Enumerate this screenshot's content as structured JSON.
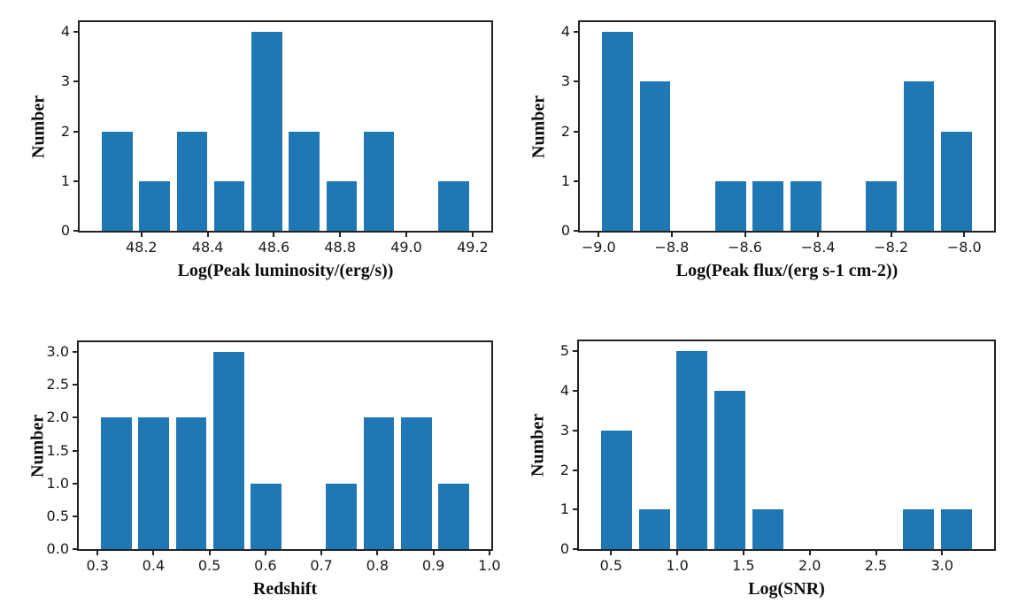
{
  "figure": {
    "background": "#ffffff",
    "bar_color": "#1f77b4",
    "spine_color": "#222222",
    "tick_label_color": "#1a1a1a",
    "grid": false,
    "legend": null
  },
  "chart_data": [
    {
      "id": "peak-luminosity-histogram",
      "type": "bar",
      "title": "",
      "xlabel": "Log(Peak luminosity/(erg/s))",
      "ylabel": "Number",
      "bin_start": 48.07,
      "bin_width": 0.113,
      "counts": [
        2,
        1,
        2,
        1,
        4,
        2,
        1,
        2,
        0,
        1
      ],
      "rwidth": 0.82,
      "xlim": [
        48.0135,
        49.2565
      ],
      "ylim": [
        0,
        4.2
      ],
      "xticks": {
        "values": [
          48.2,
          48.4,
          48.6,
          48.8,
          49.0,
          49.2
        ],
        "labels": [
          "48.2",
          "48.4",
          "48.6",
          "48.8",
          "49.0",
          "49.2"
        ]
      },
      "yticks": {
        "values": [
          0,
          1,
          2,
          3,
          4
        ],
        "labels": [
          "0",
          "1",
          "2",
          "3",
          "4"
        ]
      }
    },
    {
      "id": "peak-flux-histogram",
      "type": "bar",
      "title": "",
      "xlabel": "Log(Peak flux/(erg s-1 cm-2))",
      "ylabel": "Number",
      "bin_start": -9.0,
      "bin_width": 0.103,
      "counts": [
        4,
        3,
        0,
        1,
        1,
        1,
        0,
        1,
        3,
        2
      ],
      "rwidth": 0.82,
      "xlim": [
        -9.0515,
        -7.9185
      ],
      "ylim": [
        0,
        4.2
      ],
      "xticks": {
        "values": [
          -9.0,
          -8.8,
          -8.6,
          -8.4,
          -8.2,
          -8.0
        ],
        "labels": [
          "−9.0",
          "−8.8",
          "−8.6",
          "−8.4",
          "−8.2",
          "−8.0"
        ]
      },
      "yticks": {
        "values": [
          0,
          1,
          2,
          3,
          4
        ],
        "labels": [
          "0",
          "1",
          "2",
          "3",
          "4"
        ]
      }
    },
    {
      "id": "redshift-histogram",
      "type": "bar",
      "title": "",
      "xlabel": "Redshift",
      "ylabel": "Number",
      "bin_start": 0.3,
      "bin_width": 0.067,
      "counts": [
        2,
        2,
        2,
        3,
        1,
        0,
        1,
        2,
        2,
        1
      ],
      "rwidth": 0.82,
      "xlim": [
        0.2665,
        1.0035
      ],
      "ylim": [
        0,
        3.15
      ],
      "xticks": {
        "values": [
          0.3,
          0.4,
          0.5,
          0.6,
          0.7,
          0.8,
          0.9,
          1.0
        ],
        "labels": [
          "0.3",
          "0.4",
          "0.5",
          "0.6",
          "0.7",
          "0.8",
          "0.9",
          "1.0"
        ]
      },
      "yticks": {
        "values": [
          0,
          0.5,
          1.0,
          1.5,
          2.0,
          2.5,
          3.0
        ],
        "labels": [
          "0.0",
          "0.5",
          "1.0",
          "1.5",
          "2.0",
          "2.5",
          "3.0"
        ]
      }
    },
    {
      "id": "snr-histogram",
      "type": "bar",
      "title": "",
      "xlabel": "Log(SNR)",
      "ylabel": "Number",
      "bin_start": 0.4,
      "bin_width": 0.285,
      "counts": [
        3,
        1,
        5,
        4,
        1,
        0,
        0,
        0,
        1,
        1
      ],
      "rwidth": 0.82,
      "xlim": [
        0.2575,
        3.3925
      ],
      "ylim": [
        0,
        5.25
      ],
      "xticks": {
        "values": [
          0.5,
          1.0,
          1.5,
          2.0,
          2.5,
          3.0
        ],
        "labels": [
          "0.5",
          "1.0",
          "1.5",
          "2.0",
          "2.5",
          "3.0"
        ]
      },
      "yticks": {
        "values": [
          0,
          1,
          2,
          3,
          4,
          5
        ],
        "labels": [
          "0",
          "1",
          "2",
          "3",
          "4",
          "5"
        ]
      }
    }
  ]
}
